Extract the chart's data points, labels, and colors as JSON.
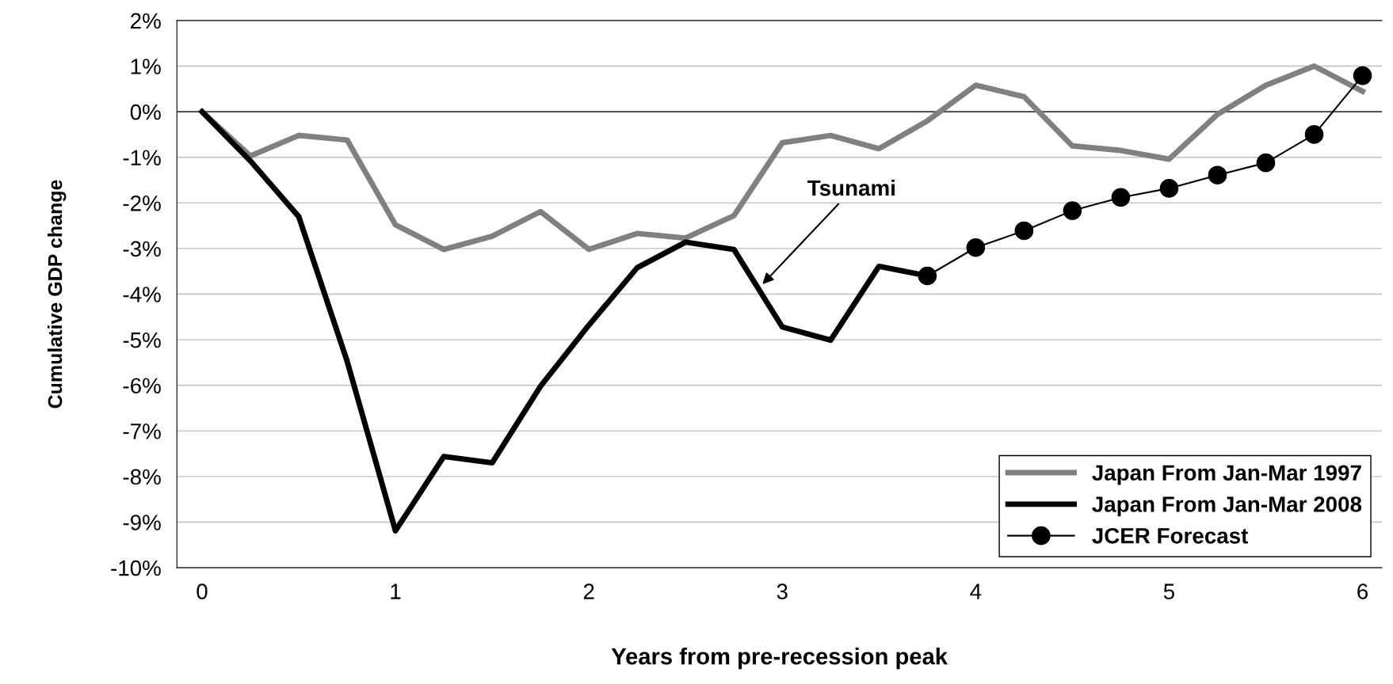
{
  "chart_data": {
    "type": "line",
    "xlabel": "Years from pre-recession peak",
    "ylabel": "Cumulative GDP change",
    "x": [
      0,
      0.25,
      0.5,
      0.75,
      1,
      1.25,
      1.5,
      1.75,
      2,
      2.25,
      2.5,
      2.75,
      3,
      3.25,
      3.5,
      3.75,
      4,
      4.25,
      4.5,
      4.75,
      5,
      5.25,
      5.5,
      5.75,
      6
    ],
    "series": [
      {
        "name": "Japan From Jan-Mar 1997",
        "color": "#808080",
        "marker": "none",
        "values": [
          0,
          -0.97,
          -0.52,
          -0.62,
          -2.48,
          -3.02,
          -2.73,
          -2.19,
          -3.02,
          -2.67,
          -2.77,
          -2.28,
          -0.68,
          -0.52,
          -0.81,
          -0.2,
          0.58,
          0.33,
          -0.75,
          -0.85,
          -1.04,
          -0.06,
          0.58,
          1.0,
          0.45
        ]
      },
      {
        "name": "Japan From Jan-Mar 2008",
        "color": "#000000",
        "marker": "none",
        "values": [
          0,
          -1.08,
          -2.3,
          -5.47,
          -9.19,
          -7.56,
          -7.7,
          -6.02,
          -4.68,
          -3.42,
          -2.86,
          -3.02,
          -4.72,
          -5.01,
          -3.39,
          -3.6,
          null,
          null,
          null,
          null,
          null,
          null,
          null,
          null,
          null
        ]
      },
      {
        "name": "JCER Forecast",
        "color": "#000000",
        "marker": "circle",
        "values": [
          null,
          null,
          null,
          null,
          null,
          null,
          null,
          null,
          null,
          null,
          null,
          null,
          null,
          null,
          null,
          -3.6,
          -2.98,
          -2.61,
          -2.17,
          -1.88,
          -1.68,
          -1.39,
          -1.12,
          -0.5,
          0.79
        ]
      }
    ],
    "xlim": [
      -0.13,
      6.1
    ],
    "xticks": [
      0,
      1,
      2,
      3,
      4,
      5,
      6
    ],
    "ylim": [
      -10,
      2
    ],
    "yticks": [
      {
        "value": -10,
        "label": "-10%"
      },
      {
        "value": -9,
        "label": "-9%"
      },
      {
        "value": -8,
        "label": "-8%"
      },
      {
        "value": -7,
        "label": "-7%"
      },
      {
        "value": -6,
        "label": "-6%"
      },
      {
        "value": -5,
        "label": "-5%"
      },
      {
        "value": -4,
        "label": "-4%"
      },
      {
        "value": -3,
        "label": "-3%"
      },
      {
        "value": -2,
        "label": "-2%"
      },
      {
        "value": -1,
        "label": "-1%"
      },
      {
        "value": 0,
        "label": "0%"
      },
      {
        "value": 1,
        "label": "1%"
      },
      {
        "value": 2,
        "label": "2%"
      }
    ],
    "ref_lines": [
      {
        "axis": "y",
        "value": 0,
        "color": "#000000"
      }
    ],
    "annotations": [
      "Tsunami"
    ],
    "grid": "y",
    "legend": "bottom right"
  }
}
